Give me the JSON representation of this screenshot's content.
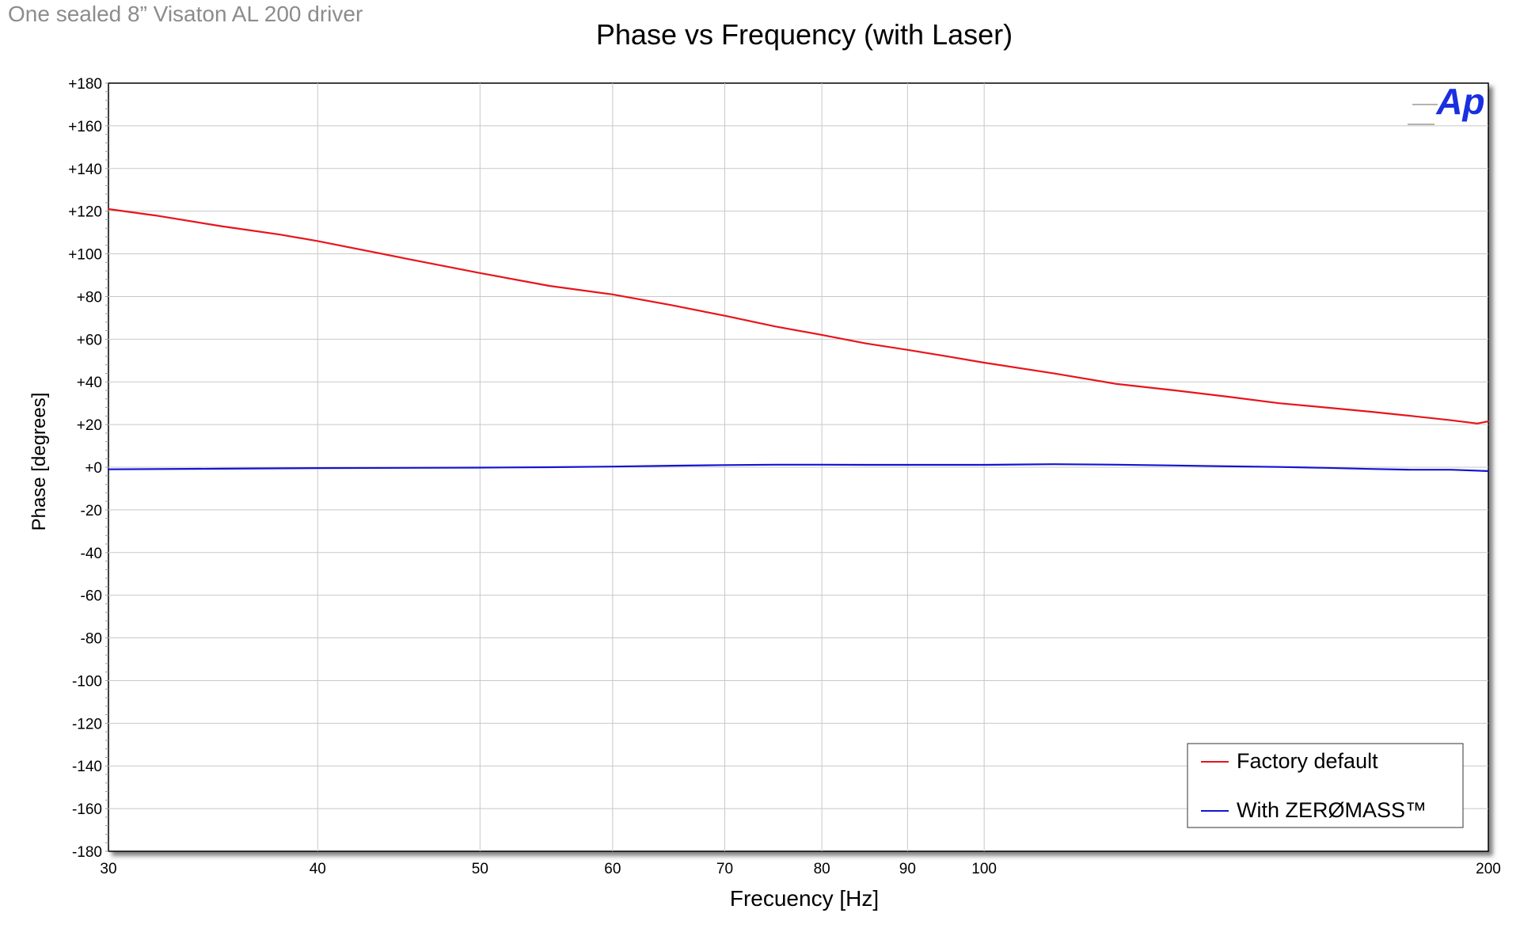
{
  "chart_data": {
    "type": "line",
    "title": "Phase vs Frequency (with Laser)",
    "subtitle": "One sealed 8” Visaton AL 200 driver",
    "xlabel": "Frecuency [Hz]",
    "ylabel": "Phase [degrees]",
    "xscale": "log",
    "xlim": [
      30,
      200
    ],
    "ylim": [
      -180,
      180
    ],
    "x_ticks": [
      30,
      40,
      50,
      60,
      70,
      80,
      90,
      100,
      200
    ],
    "x_tick_labels": [
      "30",
      "40",
      "50",
      "60",
      "70",
      "80",
      "90",
      "100",
      "200"
    ],
    "y_ticks": [
      180,
      160,
      140,
      120,
      100,
      80,
      60,
      40,
      20,
      0,
      -20,
      -40,
      -60,
      -80,
      -100,
      -120,
      -140,
      -160,
      -180
    ],
    "y_tick_labels": [
      "+180",
      "+160",
      "+140",
      "+120",
      "+100",
      "+80",
      "+60",
      "+40",
      "+20",
      "+0",
      "-20",
      "-40",
      "-60",
      "-80",
      "-100",
      "-120",
      "-140",
      "-160",
      "-180"
    ],
    "grid": true,
    "legend_position": "bottom-right",
    "logo_text": "Ap",
    "series": [
      {
        "name": "Factory default",
        "color": "#e8141c",
        "x": [
          30,
          32,
          35,
          38,
          40,
          45,
          50,
          55,
          60,
          65,
          70,
          75,
          80,
          85,
          90,
          95,
          100,
          110,
          120,
          130,
          140,
          150,
          160,
          170,
          180,
          190,
          197,
          200
        ],
        "y": [
          121,
          118,
          113,
          109,
          106,
          98,
          91,
          85,
          81,
          76,
          71,
          66,
          62,
          58,
          55,
          52,
          49,
          44,
          39,
          36,
          33,
          30,
          28,
          26,
          24,
          22,
          20.5,
          21.5
        ]
      },
      {
        "name": "With ZERØMASS™",
        "color": "#1414d2",
        "x": [
          30,
          35,
          40,
          45,
          50,
          55,
          60,
          65,
          70,
          75,
          80,
          85,
          90,
          95,
          100,
          110,
          120,
          130,
          140,
          150,
          160,
          170,
          180,
          190,
          200
        ],
        "y": [
          -1,
          -0.7,
          -0.4,
          -0.3,
          -0.2,
          0,
          0.3,
          0.7,
          1,
          1.2,
          1.2,
          1.1,
          1.1,
          1.1,
          1.1,
          1.4,
          1.2,
          0.8,
          0.4,
          0.1,
          -0.3,
          -0.8,
          -1.2,
          -1.2,
          -1.8
        ]
      }
    ]
  }
}
